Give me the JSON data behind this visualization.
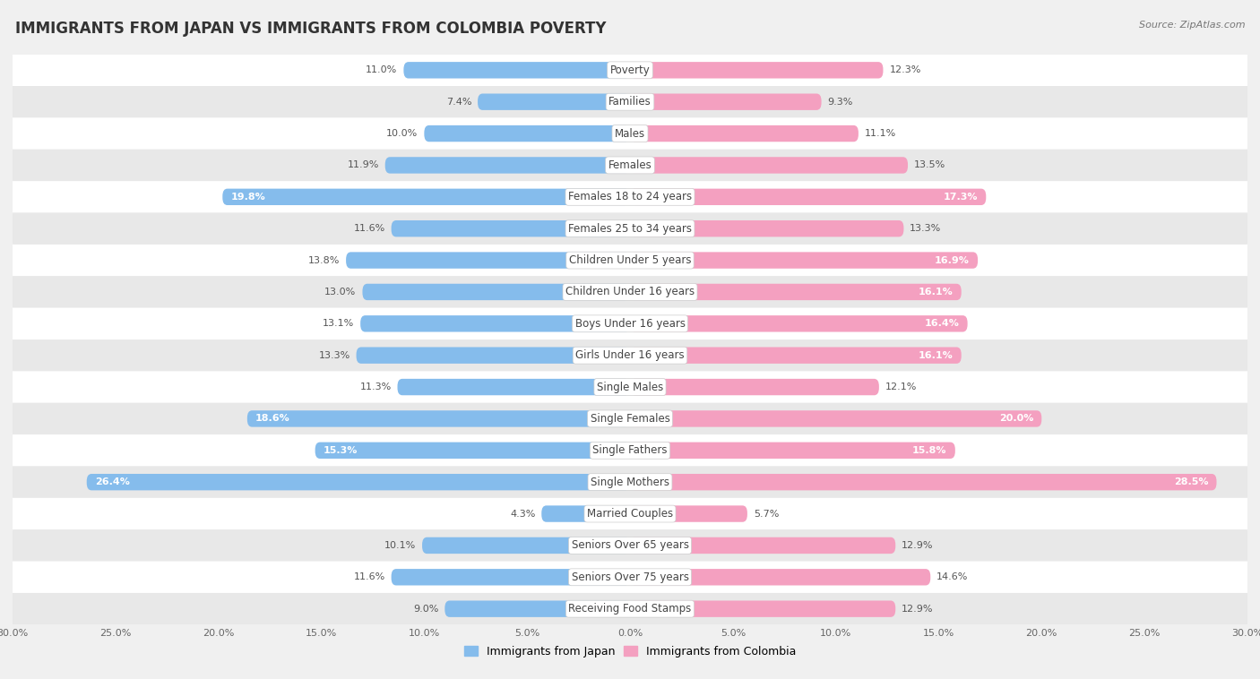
{
  "title": "IMMIGRANTS FROM JAPAN VS IMMIGRANTS FROM COLOMBIA POVERTY",
  "source": "Source: ZipAtlas.com",
  "categories": [
    "Poverty",
    "Families",
    "Males",
    "Females",
    "Females 18 to 24 years",
    "Females 25 to 34 years",
    "Children Under 5 years",
    "Children Under 16 years",
    "Boys Under 16 years",
    "Girls Under 16 years",
    "Single Males",
    "Single Females",
    "Single Fathers",
    "Single Mothers",
    "Married Couples",
    "Seniors Over 65 years",
    "Seniors Over 75 years",
    "Receiving Food Stamps"
  ],
  "japan_values": [
    11.0,
    7.4,
    10.0,
    11.9,
    19.8,
    11.6,
    13.8,
    13.0,
    13.1,
    13.3,
    11.3,
    18.6,
    15.3,
    26.4,
    4.3,
    10.1,
    11.6,
    9.0
  ],
  "colombia_values": [
    12.3,
    9.3,
    11.1,
    13.5,
    17.3,
    13.3,
    16.9,
    16.1,
    16.4,
    16.1,
    12.1,
    20.0,
    15.8,
    28.5,
    5.7,
    12.9,
    14.6,
    12.9
  ],
  "japan_color": "#85BCEC",
  "colombia_color": "#F4A0C0",
  "japan_label": "Immigrants from Japan",
  "colombia_label": "Immigrants from Colombia",
  "axis_limit": 30.0,
  "bar_height": 0.52,
  "background_color": "#f0f0f0",
  "row_bg_even": "#ffffff",
  "row_bg_odd": "#e8e8e8",
  "title_fontsize": 12,
  "label_fontsize": 8.5,
  "value_fontsize": 8,
  "legend_fontsize": 9,
  "inside_label_threshold": 15.0
}
